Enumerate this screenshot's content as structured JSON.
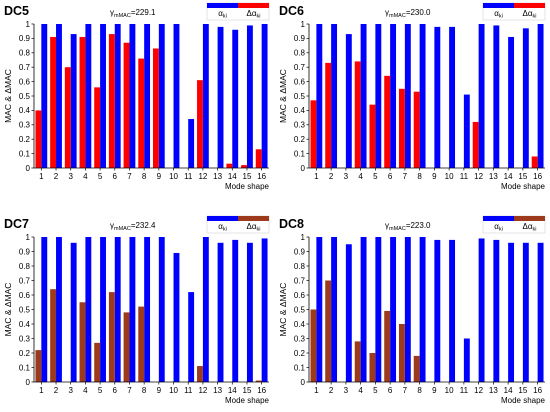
{
  "colors": {
    "blue": "#0000ff",
    "red": "#ff0000",
    "brown": "#9e3a1c"
  },
  "chart_data": [
    {
      "type": "bar",
      "title": "DC5",
      "gamma_label": "γ",
      "gamma_sub": "mMAC",
      "gamma_value": "=229.1",
      "ylabel": "MAC & ΔMAC",
      "xlabel": "Mode shape",
      "ylim": [
        0,
        1
      ],
      "yticks": [
        "0",
        "0.1",
        "0.2",
        "0.3",
        "0.4",
        "0.5",
        "0.6",
        "0.7",
        "0.8",
        "0.9",
        "1"
      ],
      "categories": [
        "1",
        "2",
        "3",
        "4",
        "5",
        "6",
        "7",
        "8",
        "9",
        "10",
        "11",
        "12",
        "13",
        "14",
        "15",
        "16"
      ],
      "legend": [
        {
          "sym": "α",
          "sub": "ki",
          "color": "#0000ff"
        },
        {
          "sym": "Δα",
          "sub": "ki",
          "color": "#ff0000"
        }
      ],
      "series": [
        {
          "values": [
            1.0,
            1.0,
            0.93,
            1.0,
            1.0,
            1.0,
            1.0,
            1.0,
            1.0,
            1.0,
            0.34,
            1.0,
            0.98,
            0.96,
            0.99,
            1.0
          ],
          "color": "#0000ff"
        },
        {
          "values": [
            0.4,
            0.91,
            0.7,
            0.91,
            0.56,
            0.93,
            0.87,
            0.76,
            0.83,
            0.0,
            0.0,
            0.61,
            0.0,
            0.03,
            0.02,
            0.13
          ],
          "color": "#ff0000"
        }
      ]
    },
    {
      "type": "bar",
      "title": "DC6",
      "gamma_label": "γ",
      "gamma_sub": "mMAC",
      "gamma_value": "=230.0",
      "ylabel": "MAC & ΔMAC",
      "xlabel": "Mode shape",
      "ylim": [
        0,
        1
      ],
      "yticks": [
        "0",
        "0.1",
        "0.2",
        "0.3",
        "0.4",
        "0.5",
        "0.6",
        "0.7",
        "0.8",
        "0.9",
        "1"
      ],
      "categories": [
        "1",
        "2",
        "3",
        "4",
        "5",
        "6",
        "7",
        "8",
        "9",
        "10",
        "11",
        "12",
        "13",
        "14",
        "15",
        "16"
      ],
      "legend": [
        {
          "sym": "α",
          "sub": "ki",
          "color": "#0000ff"
        },
        {
          "sym": "Δα",
          "sub": "ki",
          "color": "#ff0000"
        }
      ],
      "series": [
        {
          "values": [
            1.0,
            1.0,
            0.93,
            1.0,
            1.0,
            1.0,
            1.0,
            1.0,
            0.98,
            0.98,
            0.51,
            1.0,
            0.99,
            0.91,
            0.97,
            1.0
          ],
          "color": "#0000ff"
        },
        {
          "values": [
            0.47,
            0.73,
            0.0,
            0.74,
            0.44,
            0.64,
            0.55,
            0.53,
            0.0,
            0.0,
            0.0,
            0.32,
            0.0,
            0.0,
            0.0,
            0.08
          ],
          "color": "#ff0000"
        }
      ]
    },
    {
      "type": "bar",
      "title": "DC7",
      "gamma_label": "γ",
      "gamma_sub": "mMAC",
      "gamma_value": "=232.4",
      "ylabel": "MAC & ΔMAC",
      "xlabel": "Mode shape",
      "ylim": [
        0,
        1
      ],
      "yticks": [
        "0",
        "0.1",
        "0.2",
        "0.3",
        "0.4",
        "0.5",
        "0.6",
        "0.7",
        "0.8",
        "0.9",
        "1"
      ],
      "categories": [
        "1",
        "2",
        "3",
        "4",
        "5",
        "6",
        "7",
        "8",
        "9",
        "10",
        "11",
        "12",
        "13",
        "14",
        "15",
        "16"
      ],
      "legend": [
        {
          "sym": "α",
          "sub": "ki",
          "color": "#0000ff"
        },
        {
          "sym": "Δα",
          "sub": "ki",
          "color": "#9e3a1c"
        }
      ],
      "series": [
        {
          "values": [
            1.0,
            1.0,
            0.96,
            1.0,
            1.0,
            1.0,
            1.0,
            1.0,
            1.0,
            0.89,
            0.62,
            1.0,
            0.96,
            0.98,
            0.96,
            0.99
          ],
          "color": "#0000ff"
        },
        {
          "values": [
            0.22,
            0.64,
            0.0,
            0.55,
            0.27,
            0.62,
            0.48,
            0.52,
            0.0,
            0.0,
            0.0,
            0.11,
            0.0,
            0.0,
            0.0,
            0.01
          ],
          "color": "#9e3a1c"
        }
      ]
    },
    {
      "type": "bar",
      "title": "DC8",
      "gamma_label": "γ",
      "gamma_sub": "mMAC",
      "gamma_value": "=223.0",
      "ylabel": "MAC & ΔMAC",
      "xlabel": "Mode shape",
      "ylim": [
        0,
        1
      ],
      "yticks": [
        "0",
        "0.1",
        "0.2",
        "0.3",
        "0.4",
        "0.5",
        "0.6",
        "0.7",
        "0.8",
        "0.9",
        "1"
      ],
      "categories": [
        "1",
        "2",
        "3",
        "4",
        "5",
        "6",
        "7",
        "8",
        "9",
        "10",
        "11",
        "12",
        "13",
        "14",
        "15",
        "16"
      ],
      "legend": [
        {
          "sym": "α",
          "sub": "ki",
          "color": "#0000ff"
        },
        {
          "sym": "Δα",
          "sub": "ki",
          "color": "#9e3a1c"
        }
      ],
      "series": [
        {
          "values": [
            1.0,
            1.0,
            0.95,
            1.0,
            1.0,
            1.0,
            1.0,
            1.0,
            0.98,
            0.98,
            0.3,
            0.99,
            0.98,
            0.96,
            0.96,
            0.96
          ],
          "color": "#0000ff"
        },
        {
          "values": [
            0.5,
            0.7,
            0.0,
            0.28,
            0.2,
            0.49,
            0.4,
            0.18,
            0.0,
            0.0,
            0.0,
            0.0,
            0.0,
            0.0,
            0.0,
            0.0
          ],
          "color": "#9e3a1c"
        }
      ]
    }
  ]
}
